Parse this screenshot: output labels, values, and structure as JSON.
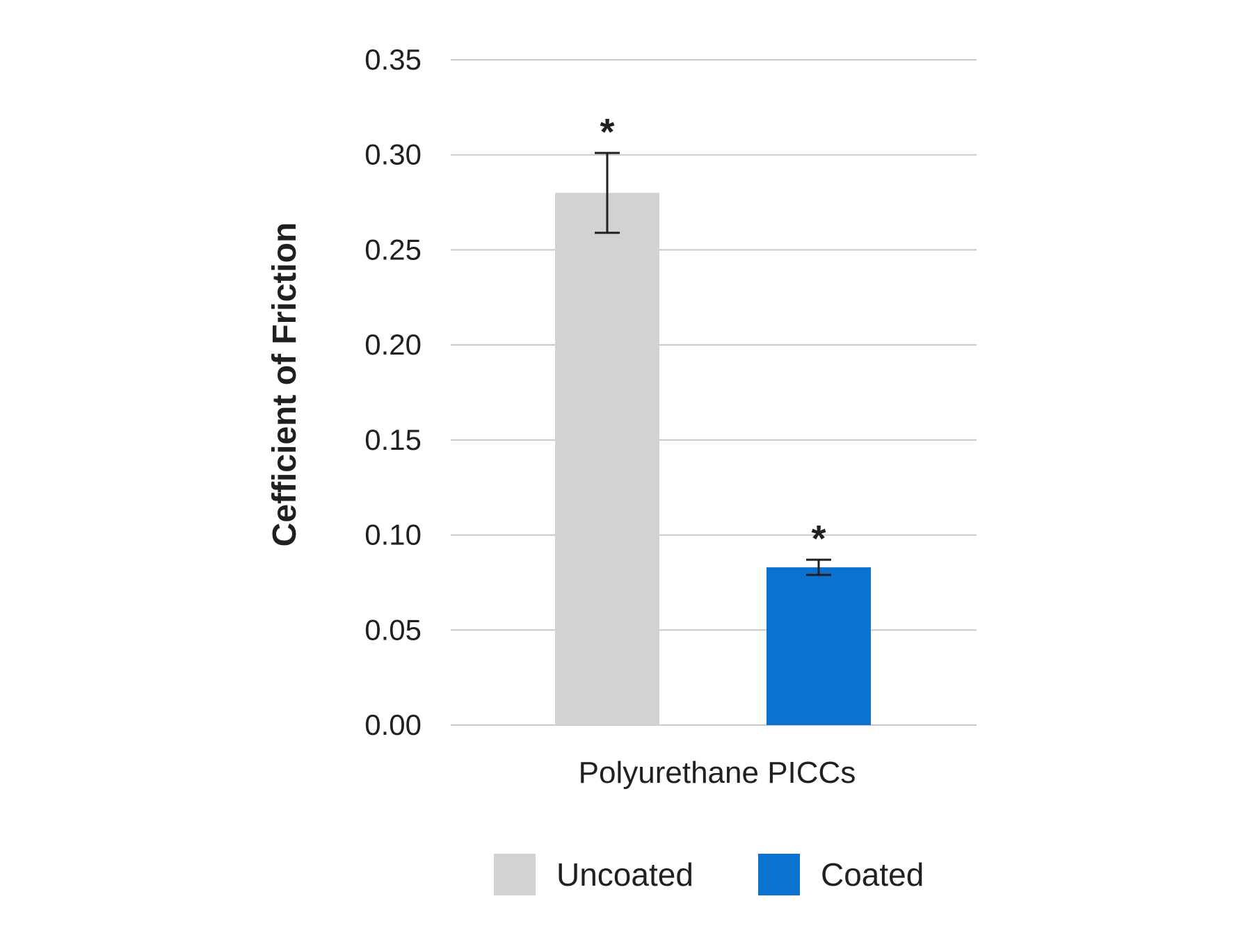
{
  "chart_data": {
    "type": "bar",
    "xlabel": "Polyurethane PICCs",
    "ylabel": "Cefficient of Friction",
    "ylim": [
      0,
      0.35
    ],
    "yticks": [
      "0.00",
      "0.05",
      "0.10",
      "0.15",
      "0.20",
      "0.25",
      "0.30",
      "0.35"
    ],
    "grid": true,
    "legend_position": "bottom",
    "series": [
      {
        "name": "Uncoated",
        "value": 0.28,
        "error_low": 0.259,
        "error_high": 0.301,
        "annotation": "*",
        "color": "#d1d2d4"
      },
      {
        "name": "Coated",
        "value": 0.083,
        "error_low": 0.079,
        "error_high": 0.087,
        "annotation": "*",
        "color": "#0b72d0"
      }
    ]
  }
}
